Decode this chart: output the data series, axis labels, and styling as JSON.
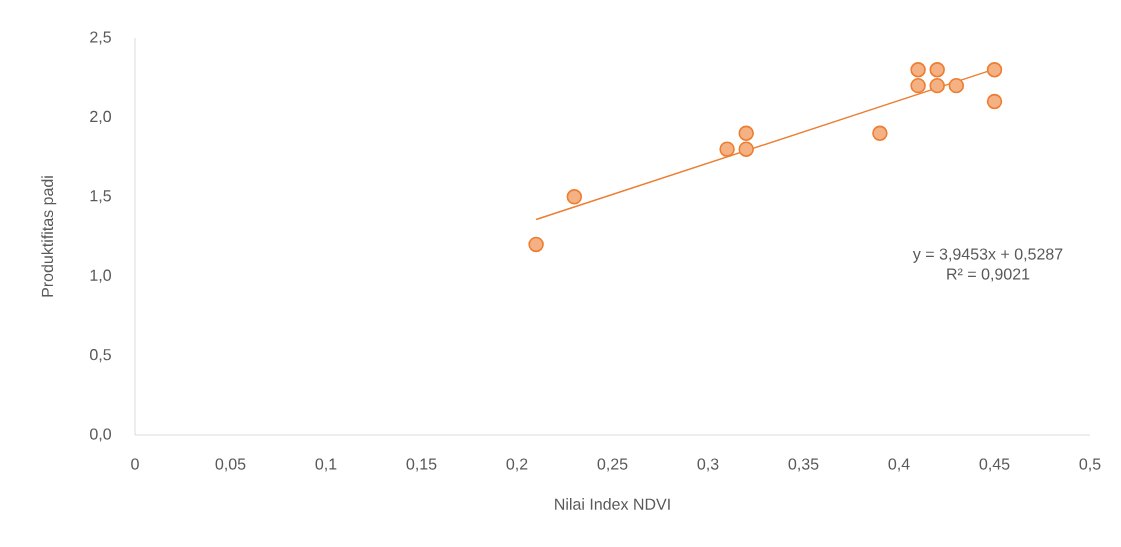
{
  "chart_data": {
    "type": "scatter",
    "xlabel": "Nilai Index NDVI",
    "ylabel": "Produktifitas padi",
    "xlim": [
      0,
      0.5
    ],
    "ylim": [
      0,
      2.5
    ],
    "xticks": [
      0,
      {
        "value": 0.05,
        "label": "0,05"
      },
      {
        "value": 0.1,
        "label": "0,1"
      },
      {
        "value": 0.15,
        "label": "0,15"
      },
      {
        "value": 0.2,
        "label": "0,2"
      },
      {
        "value": 0.25,
        "label": "0,25"
      },
      {
        "value": 0.3,
        "label": "0,3"
      },
      {
        "value": 0.35,
        "label": "0,35"
      },
      {
        "value": 0.4,
        "label": "0,4"
      },
      {
        "value": 0.45,
        "label": "0,45"
      },
      {
        "value": 0.5,
        "label": "0,5"
      }
    ],
    "yticks": [
      {
        "value": 0,
        "label": "0,0"
      },
      {
        "value": 0.5,
        "label": "0,5"
      },
      {
        "value": 1.0,
        "label": "1,0"
      },
      {
        "value": 1.5,
        "label": "1,5"
      },
      {
        "value": 2.0,
        "label": "2,0"
      },
      {
        "value": 2.5,
        "label": "2,5"
      }
    ],
    "series": [
      {
        "marker": "circle",
        "color": "#ed7d31",
        "x": [
          0.21,
          0.23,
          0.31,
          0.32,
          0.32,
          0.39,
          0.41,
          0.41,
          0.42,
          0.42,
          0.43,
          0.45,
          0.45
        ],
        "values": [
          1.2,
          1.5,
          1.8,
          1.9,
          1.8,
          1.9,
          2.3,
          2.2,
          2.3,
          2.2,
          2.2,
          2.3,
          2.1
        ]
      },
      {
        "type": "line",
        "marker": "none",
        "color": "#ed7d31",
        "x": [
          0.21,
          0.45
        ],
        "values": [
          1.357,
          2.304
        ]
      }
    ],
    "annotations": [
      "y = 3,9453x + 0,5287",
      "R² = 0,9021"
    ]
  }
}
